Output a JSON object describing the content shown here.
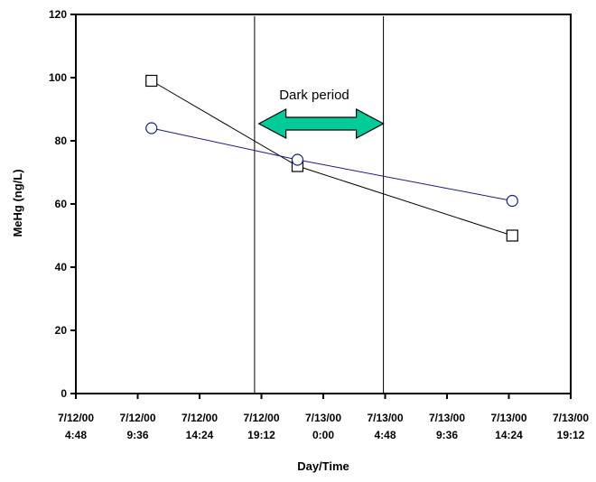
{
  "chart_data": {
    "type": "scatter",
    "title": "",
    "xlabel": "Day/Time",
    "ylabel": "MeHg (ng/L)",
    "x_axis": {
      "type": "datetime",
      "min": "2000-07-12T04:48",
      "max": "2000-07-13T19:12",
      "ticks": [
        {
          "value": "2000-07-12T04:48",
          "date": "7/12/00",
          "time": "4:48"
        },
        {
          "value": "2000-07-12T09:36",
          "date": "7/12/00",
          "time": "9:36"
        },
        {
          "value": "2000-07-12T14:24",
          "date": "7/12/00",
          "time": "14:24"
        },
        {
          "value": "2000-07-12T19:12",
          "date": "7/12/00",
          "time": "19:12"
        },
        {
          "value": "2000-07-13T00:00",
          "date": "7/13/00",
          "time": "0:00"
        },
        {
          "value": "2000-07-13T04:48",
          "date": "7/13/00",
          "time": "4:48"
        },
        {
          "value": "2000-07-13T09:36",
          "date": "7/13/00",
          "time": "9:36"
        },
        {
          "value": "2000-07-13T14:24",
          "date": "7/13/00",
          "time": "14:24"
        },
        {
          "value": "2000-07-13T19:12",
          "date": "7/13/00",
          "time": "19:12"
        }
      ]
    },
    "y_axis": {
      "min": 0,
      "max": 120,
      "ticks": [
        0,
        20,
        40,
        60,
        80,
        100,
        120
      ]
    },
    "grid": false,
    "series": [
      {
        "marker": "square",
        "color": "#000000",
        "points": [
          {
            "x": "2000-07-12T10:40",
            "y": 99
          },
          {
            "x": "2000-07-12T22:00",
            "y": 72
          },
          {
            "x": "2000-07-13T14:40",
            "y": 50
          }
        ]
      },
      {
        "marker": "circle",
        "color": "#1a1a8c",
        "points": [
          {
            "x": "2000-07-12T10:40",
            "y": 84
          },
          {
            "x": "2000-07-12T22:00",
            "y": 74
          },
          {
            "x": "2000-07-13T14:40",
            "y": 61
          }
        ]
      }
    ],
    "vertical_lines": [
      {
        "x": "2000-07-12T18:40"
      },
      {
        "x": "2000-07-13T04:40"
      }
    ],
    "annotation": {
      "text": "Dark period",
      "arrow_from": "2000-07-12T19:00",
      "arrow_to": "2000-07-13T04:40",
      "arrow_color": "#00cc99"
    }
  }
}
